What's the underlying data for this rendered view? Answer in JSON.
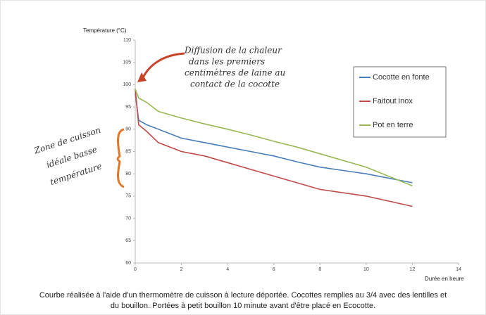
{
  "chart_data": {
    "type": "line",
    "y_label": "Température (°C)",
    "x_label": "Durée en heure",
    "x": [
      0,
      0.15,
      0.5,
      1,
      2,
      3,
      4,
      5,
      6,
      7,
      8,
      10,
      12
    ],
    "series": [
      {
        "name": "Cocotte en fonte",
        "color": "#4a7ebb",
        "values": [
          98,
          92,
          91,
          90,
          88,
          87,
          86,
          85,
          84,
          82.7,
          81.5,
          80,
          78
        ]
      },
      {
        "name": "Faitout inox",
        "color": "#be4b48",
        "values": [
          99,
          91,
          89.5,
          87,
          85,
          84,
          82.5,
          81,
          79.5,
          78,
          76.5,
          75,
          72.7
        ]
      },
      {
        "name": "Pot en terre",
        "color": "#98b954",
        "values": [
          99,
          97,
          96,
          94,
          92.5,
          91.2,
          90,
          88.7,
          87.3,
          86,
          84.5,
          81.5,
          77.3
        ]
      }
    ],
    "xlim": [
      0,
      14
    ],
    "xticks": [
      0,
      2,
      4,
      6,
      8,
      10,
      12,
      14
    ],
    "ylim": [
      60,
      110
    ],
    "yticks": [
      60,
      65,
      70,
      75,
      80,
      85,
      90,
      95,
      100,
      105,
      110
    ],
    "grid": false,
    "annotations": [
      [
        "Diffusion de la chaleur",
        "dans les premiers",
        "centimètres de laine au",
        "contact de la cocotte"
      ],
      [
        "Zone de cuisson",
        "idéale basse",
        "température"
      ]
    ],
    "caption": [
      "Courbe réalisée à l'aide d'un thermomètre de cuisson à lecture déportée. Cocottes remplies au 3/4 avec des lentilles et",
      "du bouillon. Portées à petit bouillon 10 minute avant d'être placé en Ecocotte."
    ]
  }
}
